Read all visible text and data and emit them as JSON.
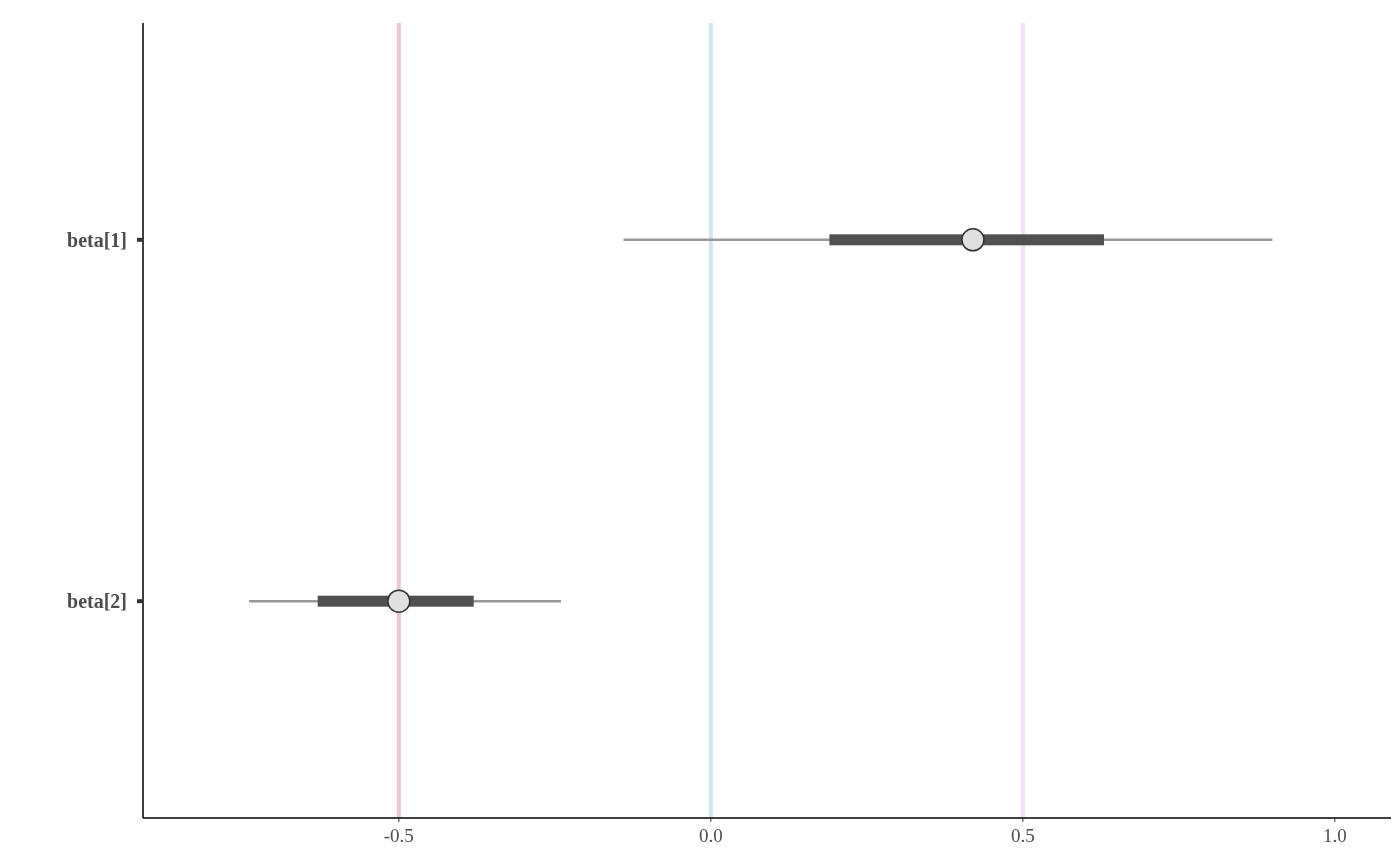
{
  "chart_data": {
    "type": "box",
    "orientation": "horizontal",
    "categories": [
      "beta[1]",
      "beta[2]"
    ],
    "boxes": [
      {
        "low": -0.14,
        "q1": 0.19,
        "median": 0.42,
        "q3": 0.63,
        "high": 0.9
      },
      {
        "low": -0.74,
        "q1": -0.63,
        "median": -0.5,
        "q3": -0.38,
        "high": -0.24
      }
    ],
    "xlim": [
      -0.91,
      1.09
    ],
    "xticks": [
      -0.5,
      {
        "value": 0,
        "label": "0.0"
      },
      0.5,
      {
        "value": 1,
        "label": "1.0"
      }
    ],
    "ref_lines": [
      {
        "axis": "x",
        "value": -0.5,
        "color": "#ebc6d8"
      },
      {
        "axis": "x",
        "value": 0,
        "color": "#cde6f1"
      },
      {
        "axis": "x",
        "value": 0.5,
        "color": "#f9dcf5"
      }
    ],
    "grid": false,
    "marker": "circle"
  }
}
